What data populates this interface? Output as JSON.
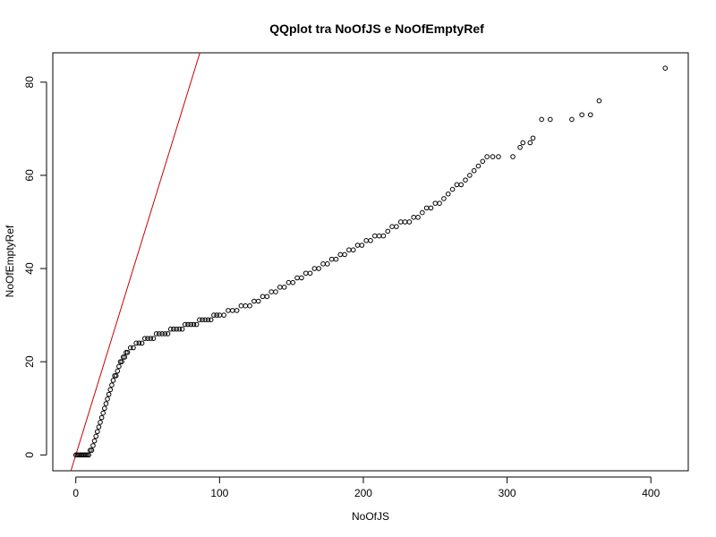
{
  "chart_data": {
    "type": "scatter",
    "title": "QQplot tra NoOfJS e NoOfEmptyRef",
    "xlabel": "NoOfJS",
    "ylabel": "NoOfEmptyRef",
    "xlim": [
      -16,
      426
    ],
    "ylim": [
      -3.4,
      86.3
    ],
    "x_ticks": [
      0,
      100,
      200,
      300,
      400
    ],
    "y_ticks": [
      0,
      20,
      40,
      60,
      80
    ],
    "point_color": "#000000",
    "line_color": "#cc0000",
    "reference_line": {
      "intercept": 0,
      "slope": 1
    },
    "x": [
      0,
      1,
      2,
      3,
      4,
      5,
      6,
      7,
      8,
      9,
      10,
      11,
      12,
      13,
      14,
      15,
      16,
      17,
      18,
      19,
      20,
      21,
      22,
      23,
      24,
      25,
      26,
      27,
      28,
      29,
      30,
      31,
      32,
      33,
      34,
      35,
      36,
      38,
      40,
      42,
      44,
      46,
      48,
      50,
      52,
      54,
      56,
      58,
      60,
      62,
      64,
      66,
      68,
      70,
      72,
      74,
      76,
      78,
      80,
      82,
      84,
      86,
      88,
      90,
      92,
      94,
      96,
      98,
      100,
      103,
      106,
      109,
      112,
      115,
      118,
      121,
      124,
      127,
      130,
      133,
      136,
      139,
      142,
      145,
      148,
      151,
      154,
      157,
      160,
      163,
      166,
      169,
      172,
      175,
      178,
      181,
      184,
      187,
      190,
      193,
      196,
      199,
      202,
      205,
      208,
      211,
      214,
      217,
      220,
      223,
      226,
      229,
      232,
      235,
      238,
      241,
      244,
      247,
      250,
      253,
      256,
      259,
      262,
      265,
      268,
      271,
      274,
      277,
      280,
      283,
      286,
      290,
      294,
      304,
      309,
      311,
      316,
      318,
      324,
      330,
      345,
      352,
      358,
      364,
      410
    ],
    "y": [
      0,
      0,
      0,
      0,
      0,
      0,
      0,
      0,
      0,
      0,
      1,
      1,
      2,
      3,
      4,
      5,
      6,
      7,
      8,
      9,
      10,
      11,
      12,
      13,
      14,
      15,
      16,
      17,
      17,
      18,
      19,
      20,
      20,
      21,
      21,
      22,
      22,
      23,
      23,
      24,
      24,
      24,
      25,
      25,
      25,
      25,
      26,
      26,
      26,
      26,
      26,
      27,
      27,
      27,
      27,
      27,
      28,
      28,
      28,
      28,
      28,
      29,
      29,
      29,
      29,
      29,
      30,
      30,
      30,
      30,
      31,
      31,
      31,
      32,
      32,
      32,
      33,
      33,
      34,
      34,
      35,
      35,
      36,
      36,
      37,
      37,
      38,
      38,
      39,
      39,
      40,
      40,
      41,
      41,
      42,
      42,
      43,
      43,
      44,
      44,
      45,
      45,
      46,
      46,
      47,
      47,
      47,
      48,
      49,
      49,
      50,
      50,
      50,
      51,
      51,
      52,
      53,
      53,
      54,
      54,
      55,
      56,
      57,
      58,
      58,
      59,
      60,
      61,
      62,
      63,
      64,
      64,
      64,
      64,
      66,
      67,
      67,
      68,
      72,
      72,
      72,
      73,
      73,
      76,
      83
    ]
  }
}
